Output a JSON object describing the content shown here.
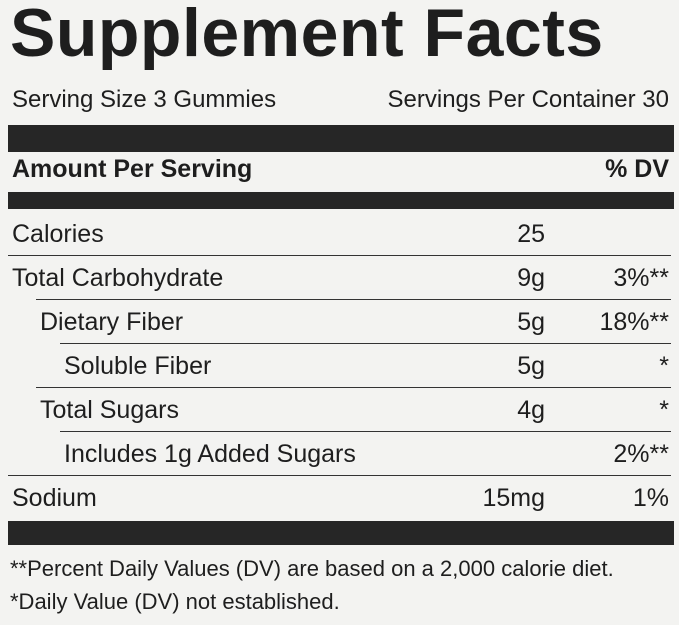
{
  "title": "Supplement Facts",
  "serving_size": "Serving Size 3 Gummies",
  "servings_per_container": "Servings Per Container 30",
  "header": {
    "amount": "Amount Per Serving",
    "dv": "% DV"
  },
  "rows": [
    {
      "name": "Calories",
      "amount": "25"
    },
    {
      "name": "Total Carbohydrate",
      "amount": "9g",
      "dv": "3%**"
    },
    {
      "name": "Dietary Fiber",
      "amount": "5g",
      "dv": "18%**"
    },
    {
      "name": "Soluble Fiber",
      "amount": "5g",
      "dv": "*"
    },
    {
      "name": "Total Sugars",
      "amount": "4g",
      "dv": "*"
    },
    {
      "name": "Includes 1g Added Sugars",
      "dv": "2%**"
    },
    {
      "name": "Sodium",
      "amount": "15mg",
      "dv": "1%"
    }
  ],
  "footnotes": [
    "**Percent Daily Values (DV) are based on a 2,000 calorie diet.",
    "*Daily Value (DV) not established."
  ]
}
